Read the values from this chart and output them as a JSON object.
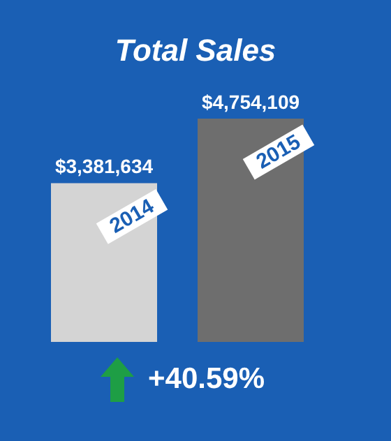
{
  "chart_data": {
    "type": "bar",
    "title": "Total Sales",
    "categories": [
      "2014",
      "2015"
    ],
    "values": [
      3381634,
      4754109
    ],
    "colors": [
      "#d4d4d4",
      "#6e6e6e"
    ],
    "value_labels": [
      "$3,381,634",
      "$4,754,109"
    ],
    "annotations": [
      "+40.59%"
    ]
  }
}
